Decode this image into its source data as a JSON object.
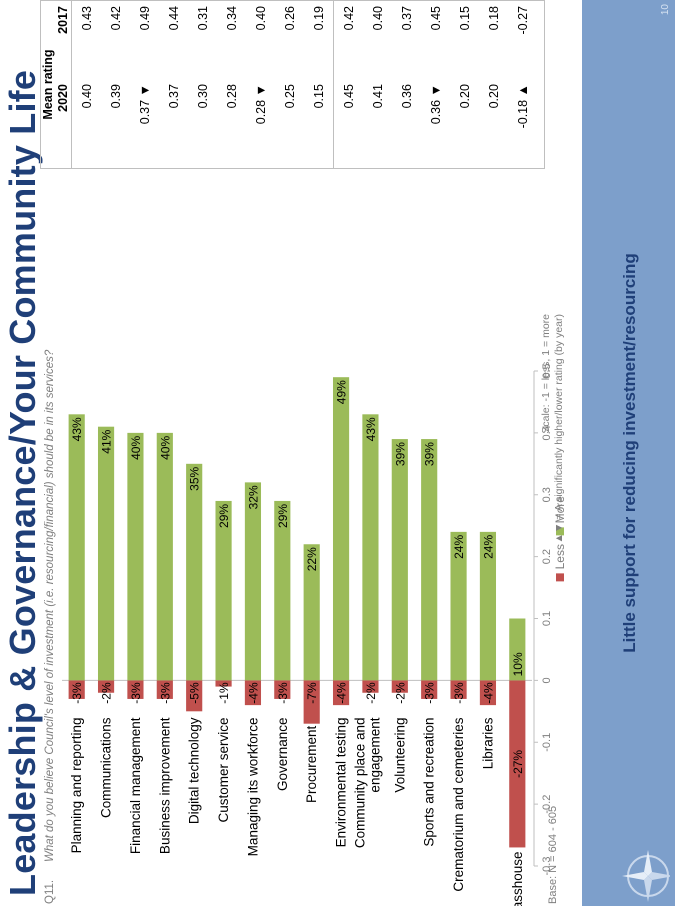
{
  "title": "Leadership & Governance/Your Community Life",
  "question_number": "Q11.",
  "question": "What do you believe Council's level of investment (i.e. resourcing/financial) should be in its services?",
  "base": "Base: N = 604 - 605",
  "scale_note": "Scale: -1 = less, 1 = more",
  "significance_note": "▲▼ = A significantly higher/lower rating (by year)",
  "footer": "Little support for reducing investment/resourcing",
  "page_number": "10",
  "colors": {
    "less": "#c0504d",
    "more": "#9bbb59"
  },
  "chart_data": {
    "type": "bar",
    "orientation": "horizontal",
    "categories": [
      "Planning and reporting",
      "Communications",
      "Financial management",
      "Business improvement",
      "Digital technology",
      "Customer service",
      "Managing its workforce",
      "Governance",
      "Procurement",
      "Environmental testing",
      "Community place and engagement",
      "Volunteering",
      "Sports and recreation",
      "Crematorium and cemeteries",
      "Libraries",
      "Glasshouse"
    ],
    "series": [
      {
        "name": "Less",
        "values": [
          -0.03,
          -0.02,
          -0.03,
          -0.03,
          -0.05,
          -0.01,
          -0.04,
          -0.03,
          -0.07,
          -0.04,
          -0.02,
          -0.02,
          -0.03,
          -0.03,
          -0.04,
          -0.27
        ],
        "labels": [
          "-3%",
          "-2%",
          "-3%",
          "-3%",
          "-5%",
          "-1%",
          "-4%",
          "-3%",
          "-7%",
          "-4%",
          "-2%",
          "-2%",
          "-3%",
          "-3%",
          "-4%",
          "-27%"
        ]
      },
      {
        "name": "More",
        "values": [
          0.43,
          0.41,
          0.4,
          0.4,
          0.35,
          0.29,
          0.32,
          0.29,
          0.22,
          0.49,
          0.43,
          0.39,
          0.39,
          0.24,
          0.24,
          0.1
        ],
        "labels": [
          "43%",
          "41%",
          "40%",
          "40%",
          "35%",
          "29%",
          "32%",
          "29%",
          "22%",
          "49%",
          "43%",
          "39%",
          "39%",
          "24%",
          "24%",
          "10%"
        ]
      }
    ],
    "xlim": [
      -0.3,
      0.5
    ],
    "xticks": [
      "-0.3",
      "-0.2",
      "-0.1",
      "0",
      "0.1",
      "0.2",
      "0.3",
      "0.4",
      "0.5"
    ],
    "legend": "bottom",
    "grid": false
  },
  "mean_rating": {
    "header": "Mean rating",
    "columns": [
      "2020",
      "2017"
    ],
    "rows": [
      {
        "y2020": "0.40",
        "y2017": "0.43"
      },
      {
        "y2020": "0.39",
        "y2017": "0.42"
      },
      {
        "y2020": "0.37 ▼",
        "y2017": "0.49"
      },
      {
        "y2020": "0.37",
        "y2017": "0.44"
      },
      {
        "y2020": "0.30",
        "y2017": "0.31"
      },
      {
        "y2020": "0.28",
        "y2017": "0.34"
      },
      {
        "y2020": "0.28 ▼",
        "y2017": "0.40"
      },
      {
        "y2020": "0.25",
        "y2017": "0.26"
      },
      {
        "y2020": "0.15",
        "y2017": "0.19"
      },
      {
        "y2020": "0.45",
        "y2017": "0.42"
      },
      {
        "y2020": "0.41",
        "y2017": "0.40"
      },
      {
        "y2020": "0.36",
        "y2017": "0.37"
      },
      {
        "y2020": "0.36 ▼",
        "y2017": "0.45"
      },
      {
        "y2020": "0.20",
        "y2017": "0.15"
      },
      {
        "y2020": "0.20",
        "y2017": "0.18"
      },
      {
        "y2020": "-0.18 ▲",
        "y2017": "-0.27"
      }
    ]
  }
}
